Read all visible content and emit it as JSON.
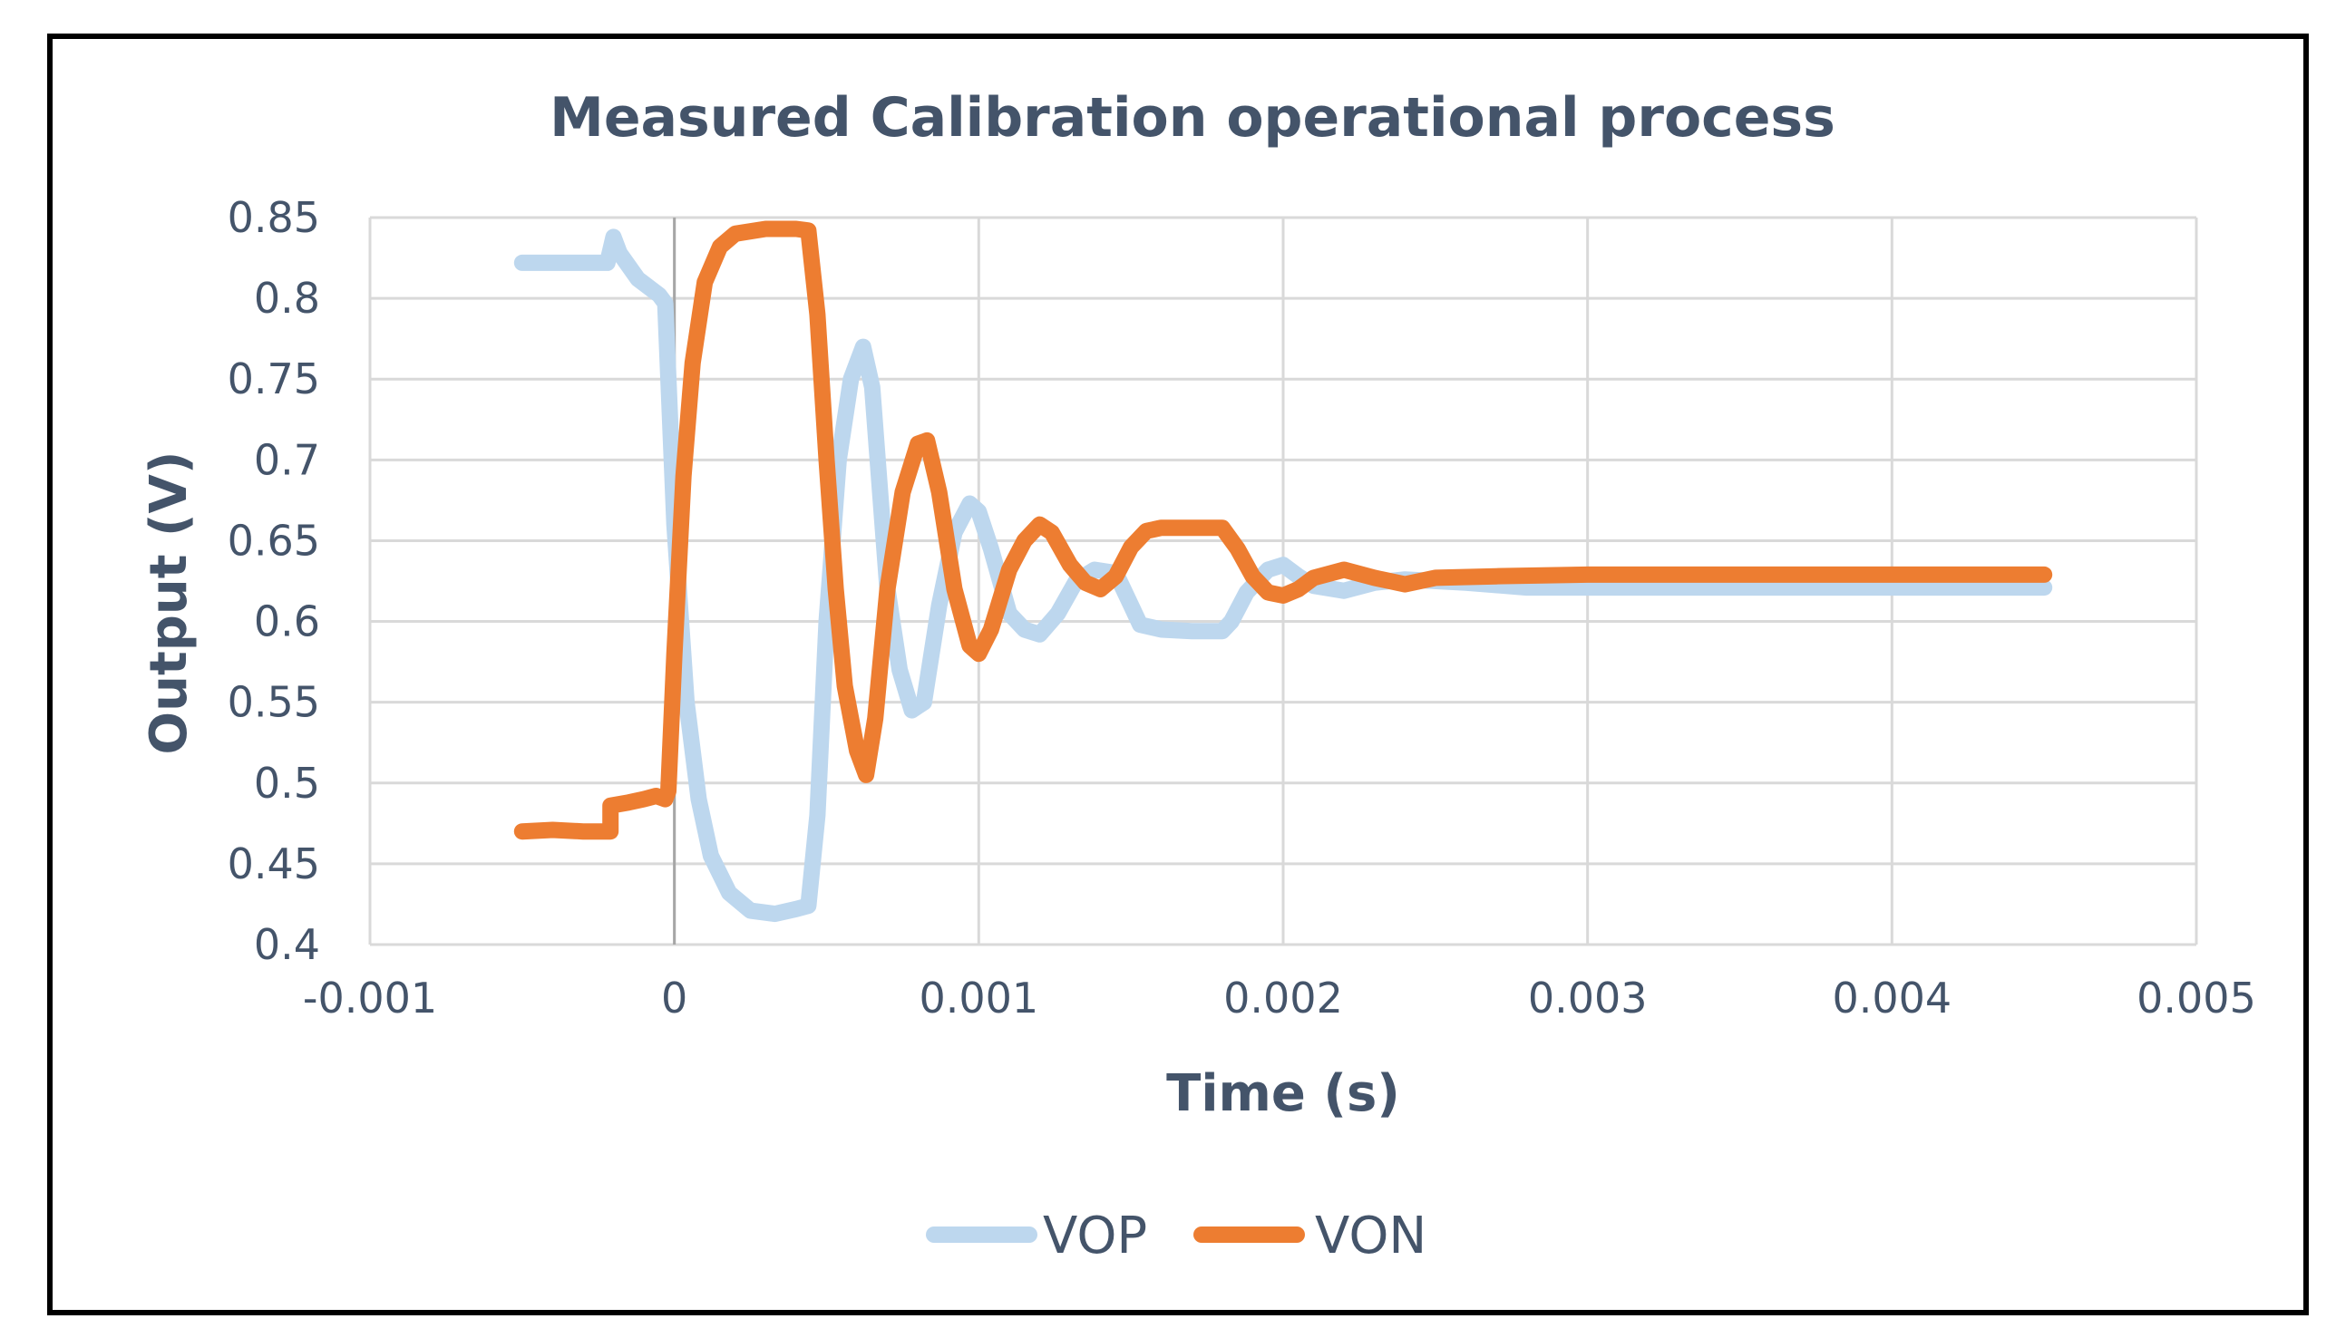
{
  "chart_data": {
    "type": "line",
    "title": "Measured Calibration operational process",
    "xlabel": "Time (s)",
    "ylabel": "Output (V)",
    "xlim": [
      -0.001,
      0.005
    ],
    "ylim": [
      0.4,
      0.85
    ],
    "x_ticks": [
      -0.001,
      0,
      0.001,
      0.002,
      0.003,
      0.004,
      0.005
    ],
    "x_tick_labels": [
      "-0.001",
      "0",
      "0.001",
      "0.002",
      "0.003",
      "0.004",
      "0.005"
    ],
    "y_ticks": [
      0.4,
      0.45,
      0.5,
      0.55,
      0.6,
      0.65,
      0.7,
      0.75,
      0.8,
      0.85
    ],
    "y_tick_labels": [
      "0.4",
      "0.45",
      "0.5",
      "0.55",
      "0.6",
      "0.65",
      "0.7",
      "0.75",
      "0.8",
      "0.85"
    ],
    "grid": true,
    "legend_position": "bottom",
    "series": [
      {
        "name": "VOP",
        "color": "#bdd7ee",
        "points": [
          [
            -0.0005,
            0.822
          ],
          [
            -0.0003,
            0.822
          ],
          [
            -0.00022,
            0.822
          ],
          [
            -0.0002,
            0.838
          ],
          [
            -0.00018,
            0.828
          ],
          [
            -0.00012,
            0.812
          ],
          [
            -5e-05,
            0.802
          ],
          [
            -3e-05,
            0.797
          ],
          [
            0.0,
            0.66
          ],
          [
            4e-05,
            0.55
          ],
          [
            8e-05,
            0.49
          ],
          [
            0.00012,
            0.455
          ],
          [
            0.00018,
            0.432
          ],
          [
            0.00025,
            0.421
          ],
          [
            0.00033,
            0.419
          ],
          [
            0.0004,
            0.422
          ],
          [
            0.00044,
            0.424
          ],
          [
            0.00047,
            0.48
          ],
          [
            0.0005,
            0.6
          ],
          [
            0.00054,
            0.7
          ],
          [
            0.00058,
            0.75
          ],
          [
            0.00062,
            0.77
          ],
          [
            0.00065,
            0.745
          ],
          [
            0.0007,
            0.62
          ],
          [
            0.00074,
            0.57
          ],
          [
            0.00078,
            0.545
          ],
          [
            0.00082,
            0.55
          ],
          [
            0.00087,
            0.61
          ],
          [
            0.00092,
            0.655
          ],
          [
            0.00097,
            0.673
          ],
          [
            0.001,
            0.668
          ],
          [
            0.00104,
            0.645
          ],
          [
            0.0011,
            0.605
          ],
          [
            0.00115,
            0.595
          ],
          [
            0.0012,
            0.592
          ],
          [
            0.00126,
            0.605
          ],
          [
            0.00132,
            0.625
          ],
          [
            0.00138,
            0.632
          ],
          [
            0.00145,
            0.63
          ],
          [
            0.0015,
            0.61
          ],
          [
            0.00153,
            0.598
          ],
          [
            0.0016,
            0.595
          ],
          [
            0.0017,
            0.594
          ],
          [
            0.0018,
            0.594
          ],
          [
            0.00183,
            0.6
          ],
          [
            0.00188,
            0.618
          ],
          [
            0.00195,
            0.632
          ],
          [
            0.002,
            0.635
          ],
          [
            0.00205,
            0.628
          ],
          [
            0.0021,
            0.622
          ],
          [
            0.0022,
            0.619
          ],
          [
            0.0023,
            0.624
          ],
          [
            0.0024,
            0.626
          ],
          [
            0.0026,
            0.624
          ],
          [
            0.0028,
            0.621
          ],
          [
            0.003,
            0.621
          ],
          [
            0.0035,
            0.621
          ],
          [
            0.004,
            0.621
          ],
          [
            0.0045,
            0.621
          ]
        ]
      },
      {
        "name": "VON",
        "color": "#ed7d31",
        "points": [
          [
            -0.0005,
            0.47
          ],
          [
            -0.0004,
            0.471
          ],
          [
            -0.0003,
            0.47
          ],
          [
            -0.00021,
            0.47
          ],
          [
            -0.00021,
            0.486
          ],
          [
            -0.00015,
            0.488
          ],
          [
            -0.0001,
            0.49
          ],
          [
            -6e-05,
            0.492
          ],
          [
            -3e-05,
            0.49
          ],
          [
            -2e-05,
            0.495
          ],
          [
            0.0,
            0.58
          ],
          [
            3e-05,
            0.69
          ],
          [
            6e-05,
            0.76
          ],
          [
            0.0001,
            0.81
          ],
          [
            0.00015,
            0.832
          ],
          [
            0.0002,
            0.84
          ],
          [
            0.0003,
            0.843
          ],
          [
            0.0004,
            0.843
          ],
          [
            0.00044,
            0.842
          ],
          [
            0.00047,
            0.79
          ],
          [
            0.0005,
            0.7
          ],
          [
            0.00053,
            0.62
          ],
          [
            0.00056,
            0.56
          ],
          [
            0.0006,
            0.52
          ],
          [
            0.00063,
            0.505
          ],
          [
            0.00066,
            0.54
          ],
          [
            0.0007,
            0.62
          ],
          [
            0.00075,
            0.68
          ],
          [
            0.0008,
            0.71
          ],
          [
            0.00083,
            0.712
          ],
          [
            0.00087,
            0.68
          ],
          [
            0.00092,
            0.62
          ],
          [
            0.00097,
            0.585
          ],
          [
            0.001,
            0.58
          ],
          [
            0.00104,
            0.595
          ],
          [
            0.0011,
            0.632
          ],
          [
            0.00115,
            0.65
          ],
          [
            0.0012,
            0.66
          ],
          [
            0.00124,
            0.655
          ],
          [
            0.0013,
            0.635
          ],
          [
            0.00135,
            0.624
          ],
          [
            0.0014,
            0.62
          ],
          [
            0.00145,
            0.628
          ],
          [
            0.0015,
            0.646
          ],
          [
            0.00155,
            0.656
          ],
          [
            0.0016,
            0.658
          ],
          [
            0.0017,
            0.658
          ],
          [
            0.0018,
            0.658
          ],
          [
            0.00185,
            0.645
          ],
          [
            0.0019,
            0.628
          ],
          [
            0.00195,
            0.618
          ],
          [
            0.002,
            0.616
          ],
          [
            0.00205,
            0.62
          ],
          [
            0.0021,
            0.627
          ],
          [
            0.0022,
            0.632
          ],
          [
            0.0023,
            0.627
          ],
          [
            0.0024,
            0.623
          ],
          [
            0.0025,
            0.627
          ],
          [
            0.0027,
            0.628
          ],
          [
            0.003,
            0.629
          ],
          [
            0.0035,
            0.629
          ],
          [
            0.004,
            0.629
          ],
          [
            0.0045,
            0.629
          ]
        ]
      }
    ]
  }
}
